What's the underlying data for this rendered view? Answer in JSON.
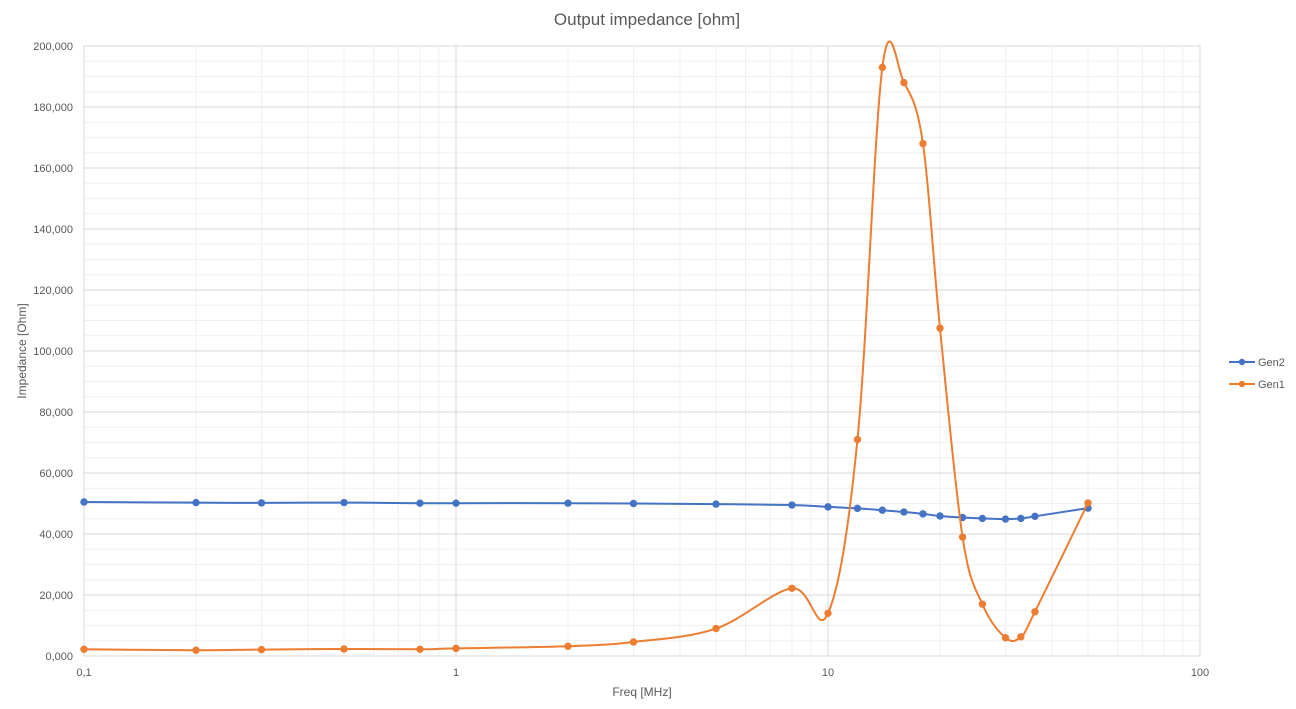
{
  "chart_data": {
    "type": "line",
    "title": "Output impedance [ohm]",
    "xlabel": "Freq [MHz]",
    "ylabel": "Impedance [Ohm]",
    "x_scale": "log",
    "xlim": [
      0.1,
      100
    ],
    "ylim": [
      0,
      200000
    ],
    "x_ticks": [
      "0,1",
      "1",
      "10",
      "100"
    ],
    "y_ticks": [
      "0,000",
      "20,000",
      "40,000",
      "60,000",
      "80,000",
      "100,000",
      "120,000",
      "140,000",
      "160,000",
      "180,000",
      "200,000"
    ],
    "grid": true,
    "legend_position": "right",
    "series": [
      {
        "name": "Gen2",
        "color": "#4472C4",
        "x": [
          0.1,
          0.2,
          0.3,
          0.5,
          0.8,
          1,
          2,
          3,
          5,
          8,
          10,
          12,
          14,
          16,
          18,
          20,
          23,
          26,
          30,
          33,
          36,
          50
        ],
        "y": [
          50500,
          50300,
          50200,
          50300,
          50100,
          50100,
          50100,
          50000,
          49800,
          49500,
          48900,
          48400,
          47800,
          47200,
          46600,
          45900,
          45400,
          45100,
          44900,
          45100,
          45800,
          48500
        ]
      },
      {
        "name": "Gen1",
        "color": "#ED7D31",
        "x": [
          0.1,
          0.2,
          0.3,
          0.5,
          0.8,
          1,
          2,
          3,
          5,
          8,
          10,
          12,
          14,
          16,
          18,
          20,
          23,
          26,
          30,
          33,
          36,
          50
        ],
        "y": [
          2200,
          1900,
          2100,
          2300,
          2200,
          2500,
          3200,
          4600,
          9000,
          22200,
          14000,
          71000,
          193000,
          188000,
          168000,
          107500,
          39000,
          17000,
          6000,
          6300,
          14500,
          50200
        ]
      }
    ]
  }
}
